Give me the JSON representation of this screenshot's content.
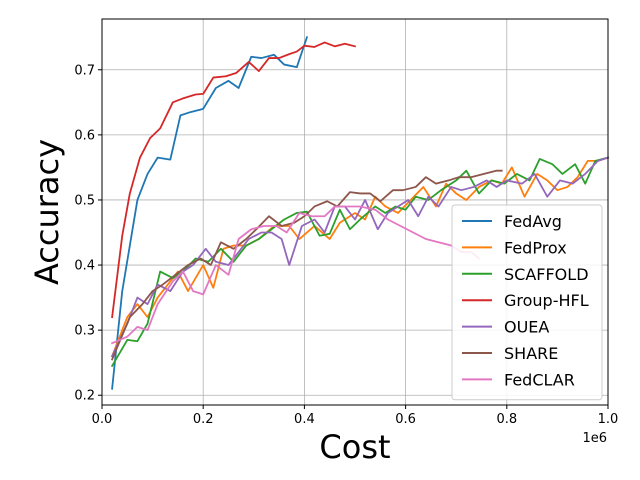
{
  "chart_data": {
    "type": "line",
    "title": "",
    "xlabel": "Cost",
    "ylabel": "Accuracy",
    "x_offset_label": "1e6",
    "xlim": [
      0,
      1000000
    ],
    "ylim": [
      0.185,
      0.778
    ],
    "x_ticks": [
      0,
      200000,
      400000,
      600000,
      800000,
      1000000
    ],
    "x_tick_labels": [
      "0.0",
      "0.2",
      "0.4",
      "0.6",
      "0.8",
      "1.0"
    ],
    "y_ticks": [
      0.2,
      0.3,
      0.4,
      0.5,
      0.6,
      0.7
    ],
    "y_tick_labels": [
      "0.2",
      "0.3",
      "0.4",
      "0.5",
      "0.6",
      "0.7"
    ],
    "grid": true,
    "legend_position": "center-right",
    "series": [
      {
        "name": "FedAvg",
        "color": "#1f77b4",
        "x": [
          20000,
          40000,
          70000,
          90000,
          110000,
          135000,
          155000,
          175000,
          200000,
          225000,
          250000,
          270000,
          295000,
          315000,
          340000,
          360000,
          385000,
          405000
        ],
        "y": [
          0.21,
          0.36,
          0.5,
          0.54,
          0.565,
          0.562,
          0.63,
          0.635,
          0.64,
          0.672,
          0.683,
          0.672,
          0.72,
          0.718,
          0.723,
          0.708,
          0.704,
          0.75
        ]
      },
      {
        "name": "FedProx",
        "color": "#ff7f0e",
        "x": [
          20000,
          50000,
          70000,
          90000,
          110000,
          130000,
          150000,
          170000,
          200000,
          220000,
          240000,
          260000,
          285000,
          310000,
          340000,
          370000,
          390000,
          420000,
          450000,
          470000,
          500000,
          520000,
          540000,
          560000,
          585000,
          610000,
          635000,
          660000,
          680000,
          700000,
          720000,
          745000,
          770000,
          790000,
          810000,
          835000,
          860000,
          880000,
          900000,
          920000,
          940000,
          960000,
          980000,
          1000000
        ],
        "y": [
          0.26,
          0.32,
          0.34,
          0.32,
          0.35,
          0.37,
          0.39,
          0.36,
          0.4,
          0.365,
          0.425,
          0.43,
          0.43,
          0.44,
          0.46,
          0.46,
          0.44,
          0.46,
          0.44,
          0.465,
          0.48,
          0.47,
          0.505,
          0.49,
          0.48,
          0.5,
          0.52,
          0.49,
          0.525,
          0.51,
          0.5,
          0.52,
          0.53,
          0.525,
          0.55,
          0.505,
          0.54,
          0.53,
          0.515,
          0.52,
          0.535,
          0.56,
          0.56,
          0.565
        ]
      },
      {
        "name": "SCAFFOLD",
        "color": "#2ca02c",
        "x": [
          20000,
          50000,
          70000,
          90000,
          115000,
          140000,
          160000,
          185000,
          210000,
          235000,
          260000,
          285000,
          310000,
          335000,
          360000,
          385000,
          405000,
          430000,
          450000,
          470000,
          490000,
          510000,
          540000,
          560000,
          580000,
          600000,
          620000,
          645000,
          670000,
          700000,
          720000,
          745000,
          770000,
          795000,
          820000,
          845000,
          865000,
          890000,
          910000,
          935000,
          955000,
          975000,
          1000000
        ],
        "y": [
          0.245,
          0.285,
          0.283,
          0.31,
          0.39,
          0.38,
          0.39,
          0.41,
          0.405,
          0.425,
          0.405,
          0.43,
          0.44,
          0.455,
          0.47,
          0.48,
          0.482,
          0.445,
          0.448,
          0.485,
          0.455,
          0.47,
          0.49,
          0.48,
          0.49,
          0.485,
          0.505,
          0.5,
          0.515,
          0.53,
          0.545,
          0.51,
          0.53,
          0.525,
          0.54,
          0.53,
          0.563,
          0.555,
          0.54,
          0.555,
          0.525,
          0.56,
          0.565
        ]
      },
      {
        "name": "Group-HFL",
        "color": "#d62728",
        "x": [
          20000,
          40000,
          55000,
          75000,
          95000,
          115000,
          140000,
          160000,
          185000,
          200000,
          220000,
          245000,
          265000,
          290000,
          310000,
          330000,
          350000,
          370000,
          385000,
          400000,
          420000,
          440000,
          460000,
          480000,
          500000
        ],
        "y": [
          0.32,
          0.445,
          0.51,
          0.565,
          0.595,
          0.61,
          0.65,
          0.656,
          0.662,
          0.663,
          0.688,
          0.69,
          0.695,
          0.712,
          0.698,
          0.718,
          0.718,
          0.724,
          0.728,
          0.737,
          0.735,
          0.742,
          0.736,
          0.74,
          0.736
        ]
      },
      {
        "name": "OUEA",
        "color": "#9467bd",
        "x": [
          20000,
          50000,
          70000,
          90000,
          110000,
          135000,
          160000,
          180000,
          205000,
          225000,
          250000,
          270000,
          290000,
          315000,
          335000,
          355000,
          370000,
          395000,
          420000,
          440000,
          460000,
          480000,
          500000,
          520000,
          545000,
          565000,
          585000,
          605000,
          625000,
          645000,
          665000,
          690000,
          710000,
          735000,
          760000,
          780000,
          800000,
          830000,
          855000,
          880000,
          905000,
          930000,
          955000,
          980000,
          1000000
        ],
        "y": [
          0.26,
          0.31,
          0.35,
          0.34,
          0.37,
          0.36,
          0.39,
          0.4,
          0.425,
          0.405,
          0.4,
          0.42,
          0.44,
          0.45,
          0.45,
          0.44,
          0.4,
          0.46,
          0.47,
          0.45,
          0.49,
          0.49,
          0.47,
          0.5,
          0.455,
          0.48,
          0.49,
          0.5,
          0.475,
          0.505,
          0.49,
          0.52,
          0.515,
          0.52,
          0.53,
          0.52,
          0.53,
          0.525,
          0.54,
          0.505,
          0.53,
          0.525,
          0.54,
          0.56,
          0.565
        ]
      },
      {
        "name": "SHARE",
        "color": "#8c564b",
        "x": [
          20000,
          55000,
          80000,
          100000,
          120000,
          145000,
          170000,
          195000,
          215000,
          235000,
          260000,
          285000,
          305000,
          330000,
          355000,
          380000,
          400000,
          420000,
          445000,
          465000,
          490000,
          510000,
          530000,
          550000,
          575000,
          595000,
          620000,
          640000,
          660000,
          685000,
          705000,
          730000,
          755000,
          780000,
          790000
        ],
        "y": [
          0.255,
          0.32,
          0.34,
          0.36,
          0.37,
          0.385,
          0.4,
          0.41,
          0.4,
          0.435,
          0.425,
          0.44,
          0.455,
          0.475,
          0.46,
          0.465,
          0.475,
          0.49,
          0.498,
          0.49,
          0.512,
          0.51,
          0.51,
          0.498,
          0.515,
          0.515,
          0.52,
          0.535,
          0.525,
          0.53,
          0.535,
          0.535,
          0.54,
          0.545,
          0.545
        ]
      },
      {
        "name": "FedCLAR",
        "color": "#e377c2",
        "x": [
          20000,
          50000,
          70000,
          90000,
          110000,
          140000,
          160000,
          180000,
          200000,
          225000,
          250000,
          270000,
          295000,
          320000,
          345000,
          365000,
          390000,
          415000,
          440000,
          460000,
          485000,
          510000,
          540000,
          565000,
          590000,
          615000,
          640000,
          665000,
          690000,
          710000,
          730000,
          745000
        ],
        "y": [
          0.28,
          0.29,
          0.305,
          0.3,
          0.34,
          0.375,
          0.39,
          0.36,
          0.355,
          0.4,
          0.385,
          0.44,
          0.455,
          0.46,
          0.46,
          0.45,
          0.48,
          0.475,
          0.475,
          0.49,
          0.49,
          0.49,
          0.485,
          0.47,
          0.46,
          0.45,
          0.44,
          0.435,
          0.43,
          0.42,
          0.42,
          0.41
        ]
      }
    ]
  }
}
